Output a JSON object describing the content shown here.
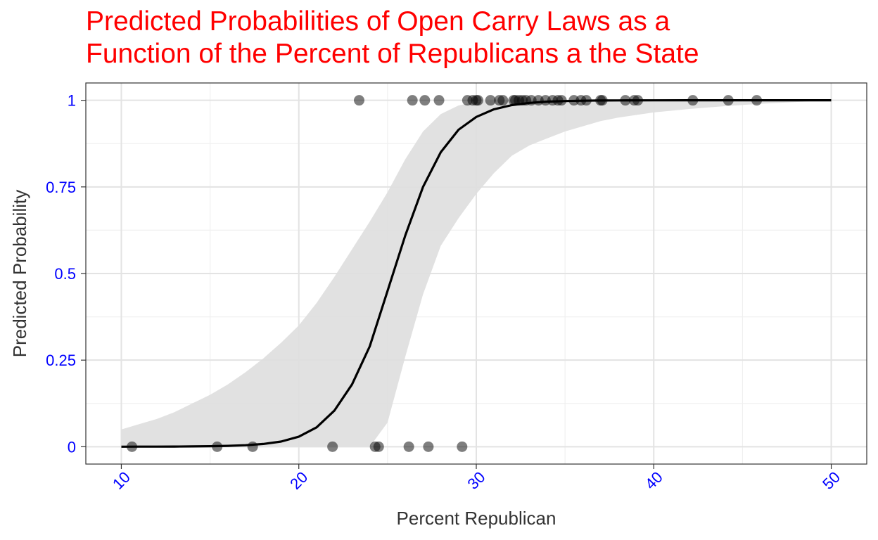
{
  "chart_data": {
    "type": "line",
    "title": "Predicted Probabilities of Open Carry Laws as a\nFunction of the Percent of Republicans a the State",
    "xlabel": "Percent Republican",
    "ylabel": "Predicted Probability",
    "xlim": [
      8,
      52
    ],
    "ylim": [
      -0.05,
      1.05
    ],
    "x_ticks": [
      10,
      20,
      30,
      40,
      50
    ],
    "x_tick_labels": [
      "10",
      "20",
      "30",
      "40",
      "50"
    ],
    "y_ticks": [
      0,
      0.25,
      0.5,
      0.75,
      1
    ],
    "y_tick_labels": [
      "0",
      "0.25",
      "0.5",
      "0.75",
      "1"
    ],
    "grid": true,
    "colors": {
      "title": "#ff0000",
      "tick_labels": "#0000ff",
      "line": "#000000",
      "ribbon": "#dedede",
      "points": "#000000"
    },
    "series": [
      {
        "type": "line",
        "x": [
          10,
          11,
          12,
          13,
          14,
          15,
          16,
          17,
          18,
          19,
          20,
          21,
          22,
          23,
          24,
          25,
          26,
          27,
          28,
          29,
          30,
          31,
          32,
          33,
          34,
          35,
          36,
          37,
          38,
          40,
          42,
          44,
          46,
          48,
          50
        ],
        "y": [
          0.0002,
          0.0003,
          0.0004,
          0.0006,
          0.001,
          0.0016,
          0.0026,
          0.0043,
          0.008,
          0.015,
          0.029,
          0.056,
          0.104,
          0.18,
          0.29,
          0.45,
          0.61,
          0.75,
          0.85,
          0.915,
          0.952,
          0.974,
          0.986,
          0.9925,
          0.996,
          0.9979,
          0.9989,
          0.9994,
          0.9997,
          0.9999,
          1,
          1,
          1,
          1,
          1
        ]
      },
      {
        "type": "ribbon",
        "x": [
          10,
          11,
          12,
          13,
          14,
          15,
          16,
          17,
          18,
          19,
          20,
          21,
          22,
          23,
          24,
          25,
          26,
          27,
          28,
          29,
          30,
          31,
          32,
          33,
          34,
          35,
          36,
          37,
          38,
          40,
          42,
          44,
          46,
          48,
          50
        ],
        "lower": [
          0,
          0,
          0,
          0,
          0,
          0,
          0,
          0,
          0,
          0,
          0,
          0,
          0,
          0,
          0,
          0.07,
          0.26,
          0.44,
          0.58,
          0.66,
          0.73,
          0.79,
          0.84,
          0.87,
          0.89,
          0.91,
          0.925,
          0.94,
          0.95,
          0.965,
          0.975,
          0.983,
          0.99,
          0.995,
          1
        ],
        "upper": [
          0.05,
          0.065,
          0.08,
          0.1,
          0.125,
          0.15,
          0.18,
          0.215,
          0.255,
          0.3,
          0.35,
          0.415,
          0.49,
          0.57,
          0.65,
          0.735,
          0.83,
          0.91,
          0.96,
          0.985,
          0.995,
          1,
          1,
          1,
          1,
          1,
          1,
          1,
          1,
          1,
          1,
          1,
          1,
          1,
          1
        ]
      },
      {
        "type": "scatter",
        "points": [
          {
            "x": 10.6,
            "y": 0
          },
          {
            "x": 15.4,
            "y": 0
          },
          {
            "x": 17.4,
            "y": 0
          },
          {
            "x": 21.9,
            "y": 0
          },
          {
            "x": 24.3,
            "y": 0
          },
          {
            "x": 24.5,
            "y": 0
          },
          {
            "x": 26.2,
            "y": 0
          },
          {
            "x": 27.3,
            "y": 0
          },
          {
            "x": 29.2,
            "y": 0
          },
          {
            "x": 23.4,
            "y": 1
          },
          {
            "x": 26.4,
            "y": 1
          },
          {
            "x": 27.1,
            "y": 1
          },
          {
            "x": 27.9,
            "y": 1
          },
          {
            "x": 29.5,
            "y": 1
          },
          {
            "x": 29.8,
            "y": 1
          },
          {
            "x": 30.0,
            "y": 1
          },
          {
            "x": 30.1,
            "y": 1
          },
          {
            "x": 30.8,
            "y": 1
          },
          {
            "x": 31.3,
            "y": 1
          },
          {
            "x": 31.5,
            "y": 1
          },
          {
            "x": 32.1,
            "y": 1
          },
          {
            "x": 32.2,
            "y": 1
          },
          {
            "x": 32.4,
            "y": 1
          },
          {
            "x": 32.6,
            "y": 1
          },
          {
            "x": 32.8,
            "y": 1
          },
          {
            "x": 33.1,
            "y": 1
          },
          {
            "x": 33.5,
            "y": 1
          },
          {
            "x": 33.9,
            "y": 1
          },
          {
            "x": 34.3,
            "y": 1
          },
          {
            "x": 34.6,
            "y": 1
          },
          {
            "x": 34.8,
            "y": 1
          },
          {
            "x": 35.5,
            "y": 1
          },
          {
            "x": 35.9,
            "y": 1
          },
          {
            "x": 36.2,
            "y": 1
          },
          {
            "x": 37.0,
            "y": 1
          },
          {
            "x": 37.1,
            "y": 1
          },
          {
            "x": 38.4,
            "y": 1
          },
          {
            "x": 38.9,
            "y": 1
          },
          {
            "x": 39.1,
            "y": 1
          },
          {
            "x": 42.2,
            "y": 1
          },
          {
            "x": 44.2,
            "y": 1
          },
          {
            "x": 45.8,
            "y": 1
          }
        ]
      }
    ]
  }
}
